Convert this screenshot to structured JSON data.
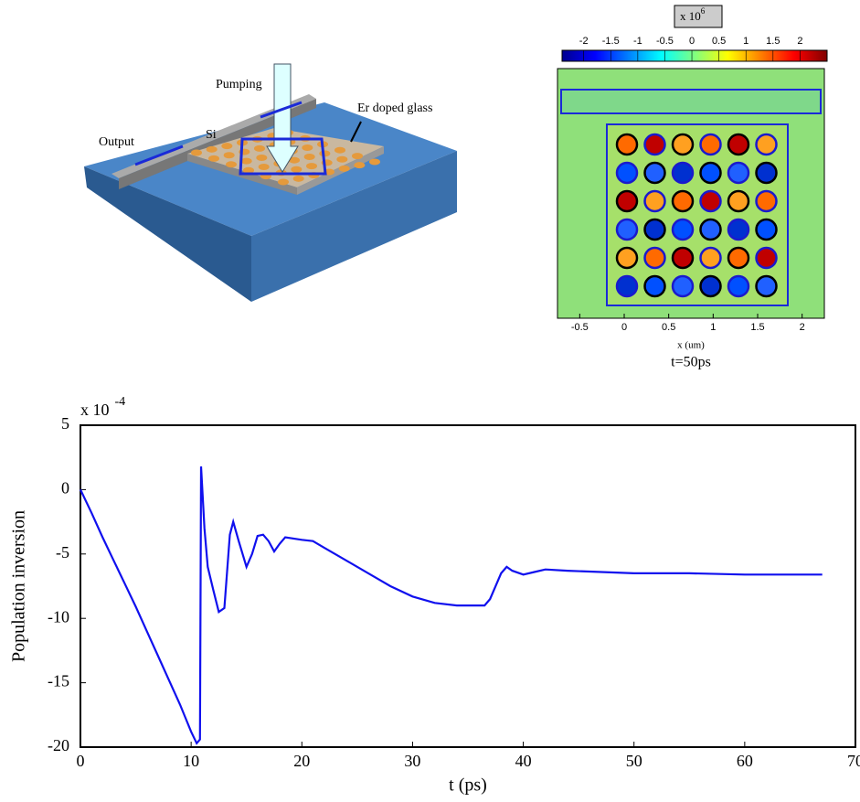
{
  "diagram": {
    "labels": [
      "Pumping",
      "Er doped glass",
      "Output",
      "Si"
    ]
  },
  "chart_data": [
    {
      "type": "heatmap",
      "colorbar": {
        "multiplier": "x 10",
        "exponent": "6",
        "lim": [
          -2.4,
          2.5
        ],
        "ticks": [
          -2,
          -1.5,
          -1,
          -0.5,
          0,
          0.5,
          1,
          1.5,
          2
        ]
      },
      "xlim": [
        -0.75,
        2.25
      ],
      "xticks": [
        -0.5,
        0,
        0.5,
        1,
        1.5,
        2
      ],
      "xlabel": "x (um)",
      "caption": "t=50ps"
    },
    {
      "type": "line",
      "multiplier": "x 10",
      "exponent": "-4",
      "xlabel": "t (ps)",
      "ylabel": "Population inversion",
      "xlim": [
        0,
        70
      ],
      "ylim": [
        -20,
        5
      ],
      "xticks": [
        0,
        10,
        20,
        30,
        40,
        50,
        60,
        70
      ],
      "yticks": [
        -20,
        -15,
        -10,
        -5,
        0,
        5
      ],
      "color": "#1010ee",
      "x": [
        0,
        1,
        2,
        3,
        4,
        5,
        6,
        7,
        8,
        9,
        10,
        10.5,
        10.8,
        10.9,
        11.2,
        11.5,
        12,
        12.5,
        13,
        13.5,
        13.8,
        14.3,
        15,
        15.5,
        16,
        16.5,
        17,
        17.5,
        18,
        18.5,
        20,
        21,
        22,
        24,
        26,
        28,
        30,
        32,
        34,
        36.5,
        37,
        38,
        38.5,
        39,
        40,
        41,
        42,
        44,
        50,
        55,
        60,
        65,
        67
      ],
      "values": [
        0,
        -1.8,
        -3.7,
        -5.5,
        -7.3,
        -9.1,
        -11,
        -12.9,
        -14.8,
        -16.7,
        -18.8,
        -19.7,
        -19.4,
        1.8,
        -3,
        -6,
        -7.8,
        -9.5,
        -9.2,
        -3.5,
        -2.5,
        -4,
        -6,
        -5,
        -3.6,
        -3.5,
        -4,
        -4.8,
        -4.2,
        -3.7,
        -3.9,
        -4,
        -4.5,
        -5.5,
        -6.5,
        -7.5,
        -8.3,
        -8.8,
        -9,
        -9,
        -8.5,
        -6.5,
        -6,
        -6.3,
        -6.6,
        -6.4,
        -6.2,
        -6.3,
        -6.5,
        -6.5,
        -6.6,
        -6.6,
        -6.6
      ]
    }
  ]
}
